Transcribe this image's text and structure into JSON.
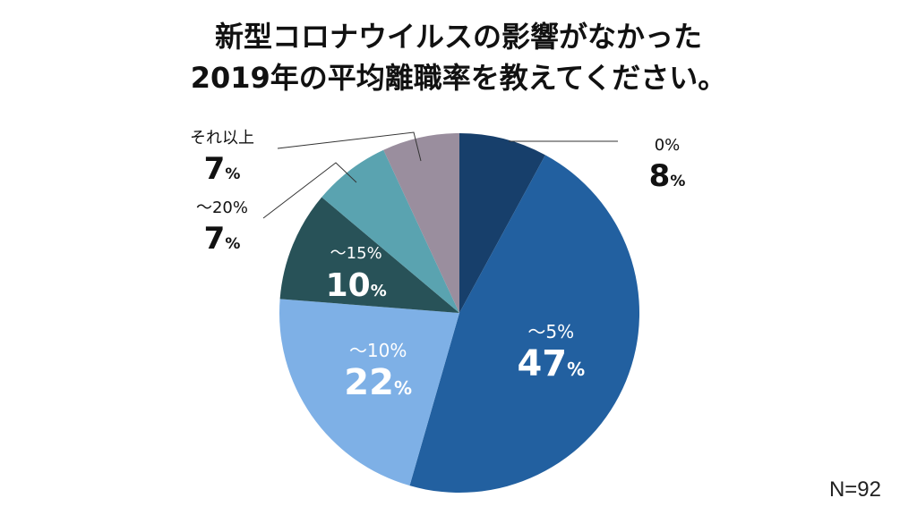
{
  "title_line1": "新型コロナウイルスの影響がなかった",
  "title_line2": "2019年の平均離職率を教えてください。",
  "note": "N=92",
  "chart_data": {
    "type": "pie",
    "start": "top",
    "direction": "clockwise",
    "unit": "%",
    "slices": [
      {
        "label": "0%",
        "value": 8,
        "color": "#173f6b"
      },
      {
        "label": "～5%",
        "value": 47,
        "color": "#2260a0"
      },
      {
        "label": "～10%",
        "value": 22,
        "color": "#7eb0e6"
      },
      {
        "label": "～15%",
        "value": 10,
        "color": "#285258"
      },
      {
        "label": "～20%",
        "value": 7,
        "color": "#5aa3b0"
      },
      {
        "label": "それ以上",
        "value": 7,
        "color": "#9a8e9e"
      }
    ]
  }
}
